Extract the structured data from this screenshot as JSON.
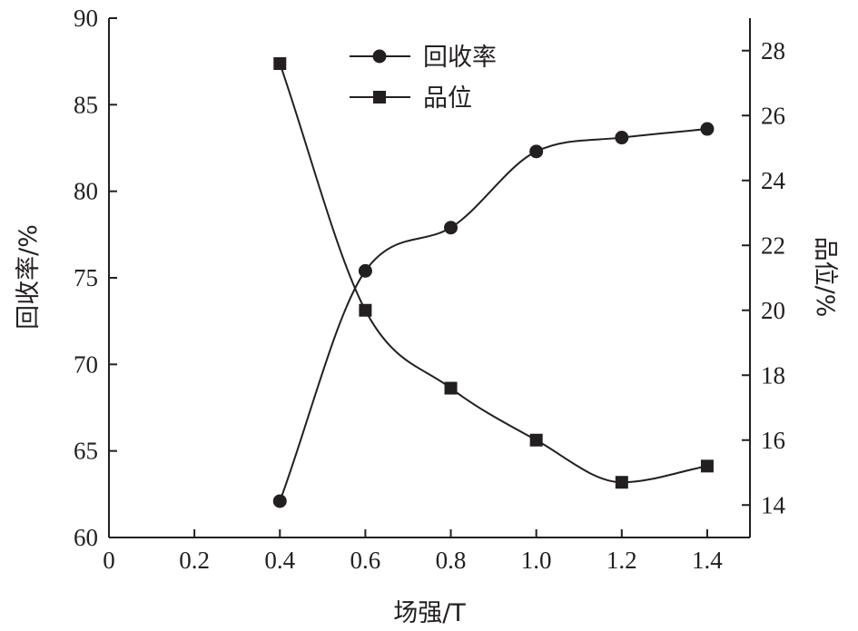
{
  "chart_data": {
    "type": "line",
    "xlabel": "场强/T",
    "ylabel_left": "回收率/%",
    "ylabel_right": "品位/%",
    "xlim": [
      0,
      1.5
    ],
    "ylim_left": [
      60,
      90
    ],
    "ylim_right": [
      13,
      29
    ],
    "x_ticks": [
      "0",
      "0.2",
      "0.4",
      "0.6",
      "0.8",
      "1.0",
      "1.2",
      "1.4"
    ],
    "x_tick_values": [
      0,
      0.2,
      0.4,
      0.6,
      0.8,
      1.0,
      1.2,
      1.4
    ],
    "y_left_ticks": [
      "60",
      "65",
      "70",
      "75",
      "80",
      "85",
      "90"
    ],
    "y_left_tick_values": [
      60,
      65,
      70,
      75,
      80,
      85,
      90
    ],
    "y_right_ticks": [
      "14",
      "16",
      "18",
      "20",
      "22",
      "24",
      "26",
      "28"
    ],
    "y_right_tick_values": [
      14,
      16,
      18,
      20,
      22,
      24,
      26,
      28
    ],
    "grid": false,
    "legend_position": "top-center",
    "line_color": "#231f20",
    "series": [
      {
        "name": "回收率",
        "axis": "left",
        "marker": "circle",
        "x": [
          0.4,
          0.6,
          0.8,
          1.0,
          1.2,
          1.4
        ],
        "values": [
          62.1,
          75.4,
          77.9,
          82.3,
          83.1,
          83.6
        ]
      },
      {
        "name": "品位",
        "axis": "right",
        "marker": "square",
        "x": [
          0.4,
          0.6,
          0.8,
          1.0,
          1.2,
          1.4
        ],
        "values": [
          27.6,
          20.0,
          17.6,
          16.0,
          14.7,
          15.2
        ]
      }
    ]
  }
}
